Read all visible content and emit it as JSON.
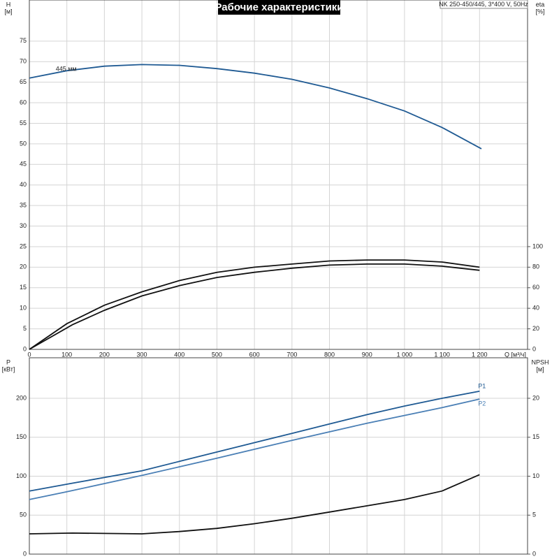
{
  "chart_data": [
    {
      "type": "line",
      "title": "Рабочие характеристики",
      "subtitle": "NK 250-450/445, 3*400 V, 50Hz",
      "y_label": [
        "H",
        "[м]"
      ],
      "y2_label": [
        "eta",
        "[%]"
      ],
      "x_label": "Q [м³/ч]",
      "xlim": [
        0,
        1328
      ],
      "ylim": [
        0,
        85
      ],
      "y2lim": [
        0,
        340
      ],
      "xticks": [
        0,
        100,
        200,
        300,
        400,
        500,
        600,
        700,
        800,
        900,
        {
          "value": 1000,
          "label": "1 000"
        },
        {
          "value": 1100,
          "label": "1 100"
        },
        {
          "value": 1200,
          "label": "1 200"
        }
      ],
      "yticks": [
        0,
        5,
        10,
        15,
        20,
        25,
        30,
        35,
        40,
        45,
        50,
        55,
        60,
        65,
        70,
        75
      ],
      "y2ticks": [
        0,
        20,
        40,
        60,
        80,
        100
      ],
      "grid": true,
      "series": [
        {
          "name": "445 мм",
          "color": "#1f5a93",
          "x": [
            0,
            100,
            200,
            300,
            400,
            500,
            600,
            700,
            800,
            900,
            1000,
            1100,
            1205
          ],
          "values": [
            66,
            67.8,
            68.9,
            69.3,
            69.1,
            68.3,
            67.2,
            65.7,
            63.6,
            61.0,
            58.0,
            54.0,
            48.8
          ]
        },
        {
          "color": "#111111",
          "axis": "y2",
          "x": [
            0,
            100,
            200,
            300,
            400,
            500,
            600,
            700,
            800,
            900,
            1000,
            1100,
            1200
          ],
          "values": [
            0,
            25,
            43,
            56,
            67,
            75,
            80,
            83,
            86,
            87,
            87,
            85,
            80
          ]
        },
        {
          "color": "#111111",
          "axis": "y2",
          "x": [
            0,
            115,
            200,
            300,
            400,
            500,
            600,
            700,
            800,
            900,
            1000,
            1100,
            1200
          ],
          "values": [
            0,
            24,
            38,
            52,
            62,
            70,
            75,
            79,
            82,
            83,
            83,
            81,
            77
          ]
        }
      ]
    },
    {
      "type": "line",
      "y_label": [
        "P",
        "[кВт]"
      ],
      "y2_label": [
        "NPSH",
        "[м]"
      ],
      "xlim": [
        0,
        1328
      ],
      "ylim": [
        0,
        252
      ],
      "y2lim": [
        0,
        25.2
      ],
      "xticks": [
        0,
        100,
        200,
        300,
        400,
        500,
        600,
        700,
        800,
        900,
        1000,
        1100,
        1200
      ],
      "yticks": [
        0,
        50,
        100,
        150,
        200
      ],
      "y2ticks": [
        0,
        5,
        10,
        15,
        20
      ],
      "grid": true,
      "series": [
        {
          "name": "P1",
          "color": "#1f5a93",
          "x": [
            0,
            115,
            300,
            400,
            500,
            600,
            700,
            800,
            900,
            1000,
            1100,
            1200
          ],
          "values": [
            81,
            91,
            107,
            119,
            131,
            143,
            155,
            167,
            179,
            190,
            200,
            209
          ]
        },
        {
          "name": "P2",
          "color": "#4a7fb5",
          "x": [
            0,
            100,
            300,
            500,
            700,
            900,
            1100,
            1200
          ],
          "values": [
            70,
            80,
            101,
            123,
            146,
            168,
            188,
            199
          ]
        },
        {
          "color": "#111111",
          "axis": "y2",
          "x": [
            0,
            115,
            300,
            400,
            500,
            600,
            700,
            800,
            900,
            1000,
            1100,
            1200
          ],
          "values": [
            2.6,
            2.7,
            2.6,
            2.9,
            3.3,
            3.9,
            4.6,
            5.4,
            6.2,
            7.0,
            8.1,
            10.2
          ]
        }
      ]
    }
  ]
}
